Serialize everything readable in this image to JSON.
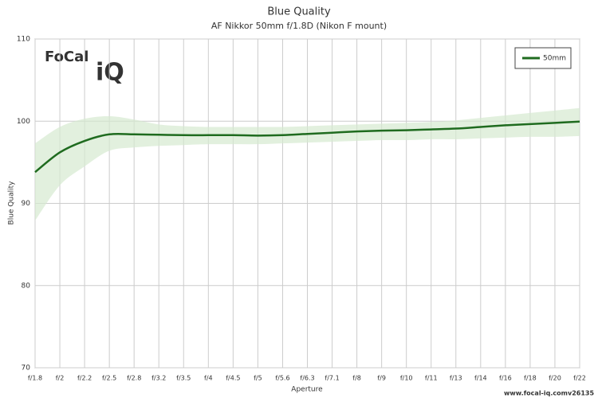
{
  "chart_data": {
    "type": "line",
    "title": "Blue Quality",
    "subtitle": "AF Nikkor 50mm f/1.8D (Nikon F mount)",
    "x_label": "Aperture",
    "y_label": "Blue Quality",
    "categories": [
      "f/1.8",
      "f/2",
      "f/2.2",
      "f/2.5",
      "f/2.8",
      "f/3.2",
      "f/3.5",
      "f/4",
      "f/4.5",
      "f/5",
      "f/5.6",
      "f/6.3",
      "f/7.1",
      "f/8",
      "f/9",
      "f/10",
      "f/11",
      "f/13",
      "f/14",
      "f/16",
      "f/18",
      "f/20",
      "f/22"
    ],
    "series": [
      {
        "name": "50mm",
        "color": "#1f6b1f",
        "values": [
          93.8,
          96.2,
          97.6,
          98.4,
          98.4,
          98.35,
          98.3,
          98.3,
          98.3,
          98.25,
          98.3,
          98.45,
          98.6,
          98.75,
          98.85,
          98.9,
          99.0,
          99.1,
          99.3,
          99.5,
          99.65,
          99.8,
          99.95
        ]
      }
    ],
    "band": {
      "color": "#d6e9d0",
      "upper": [
        97.3,
        99.3,
        100.3,
        100.6,
        100.2,
        99.6,
        99.4,
        99.3,
        99.3,
        99.3,
        99.3,
        99.4,
        99.5,
        99.6,
        99.7,
        99.8,
        99.9,
        100.1,
        100.4,
        100.7,
        101.0,
        101.3,
        101.6
      ],
      "lower": [
        87.9,
        92.2,
        94.5,
        96.4,
        96.8,
        97.0,
        97.1,
        97.2,
        97.2,
        97.2,
        97.3,
        97.4,
        97.5,
        97.6,
        97.7,
        97.7,
        97.8,
        97.8,
        97.9,
        98.0,
        98.1,
        98.1,
        98.2
      ]
    },
    "ylim": [
      70,
      110
    ],
    "yticks": [
      70,
      80,
      90,
      100,
      110
    ],
    "grid": true,
    "legend": "top-right",
    "logo": {
      "left": "FoCal",
      "right": "iQ"
    },
    "footer": "www.focal-iq.com",
    "version": "v26135"
  }
}
